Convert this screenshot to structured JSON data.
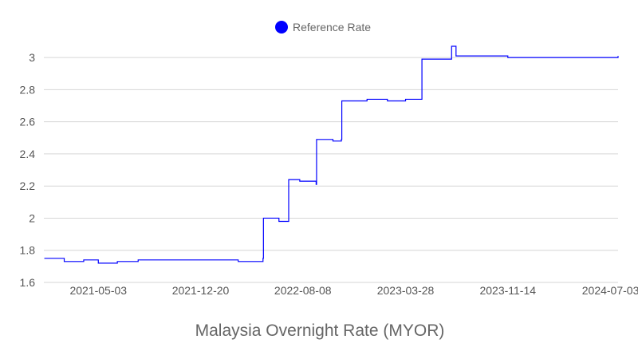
{
  "chart_data": {
    "type": "line",
    "title": "",
    "xlabel": "Malaysia Overnight Rate (MYOR)",
    "ylabel": "",
    "x_tick_labels": [
      "2021-05-03",
      "2021-12-20",
      "2022-08-08",
      "2023-03-28",
      "2023-11-14",
      "2024-07-03"
    ],
    "y_tick_labels": [
      "1.6",
      "1.8",
      "2",
      "2.2",
      "2.4",
      "2.6",
      "2.8",
      "3"
    ],
    "ylim": [
      1.6,
      3.0
    ],
    "xlim": [
      "2020-12-31",
      "2024-07-20"
    ],
    "grid": true,
    "legend_position": "top",
    "series": [
      {
        "name": "Reference Rate",
        "color": "#0000ff",
        "points": [
          [
            "2021-01-01",
            1.75
          ],
          [
            "2021-02-15",
            1.73
          ],
          [
            "2021-03-31",
            1.74
          ],
          [
            "2021-05-03",
            1.72
          ],
          [
            "2021-06-15",
            1.73
          ],
          [
            "2021-08-01",
            1.74
          ],
          [
            "2021-09-15",
            1.74
          ],
          [
            "2021-11-01",
            1.74
          ],
          [
            "2021-12-20",
            1.74
          ],
          [
            "2022-02-01",
            1.74
          ],
          [
            "2022-03-15",
            1.73
          ],
          [
            "2022-05-10",
            1.75
          ],
          [
            "2022-05-11",
            2.0
          ],
          [
            "2022-06-15",
            1.98
          ],
          [
            "2022-07-06",
            1.98
          ],
          [
            "2022-07-07",
            2.24
          ],
          [
            "2022-08-01",
            2.23
          ],
          [
            "2022-09-07",
            2.21
          ],
          [
            "2022-09-08",
            2.49
          ],
          [
            "2022-10-15",
            2.48
          ],
          [
            "2022-11-03",
            2.49
          ],
          [
            "2022-11-04",
            2.73
          ],
          [
            "2022-12-31",
            2.74
          ],
          [
            "2023-02-15",
            2.73
          ],
          [
            "2023-03-28",
            2.74
          ],
          [
            "2023-05-03",
            2.74
          ],
          [
            "2023-05-04",
            2.99
          ],
          [
            "2023-06-30",
            2.99
          ],
          [
            "2023-07-10",
            3.07
          ],
          [
            "2023-07-20",
            3.01
          ],
          [
            "2023-11-14",
            3.0
          ],
          [
            "2024-03-01",
            3.0
          ],
          [
            "2024-07-20",
            3.01
          ]
        ]
      }
    ]
  }
}
